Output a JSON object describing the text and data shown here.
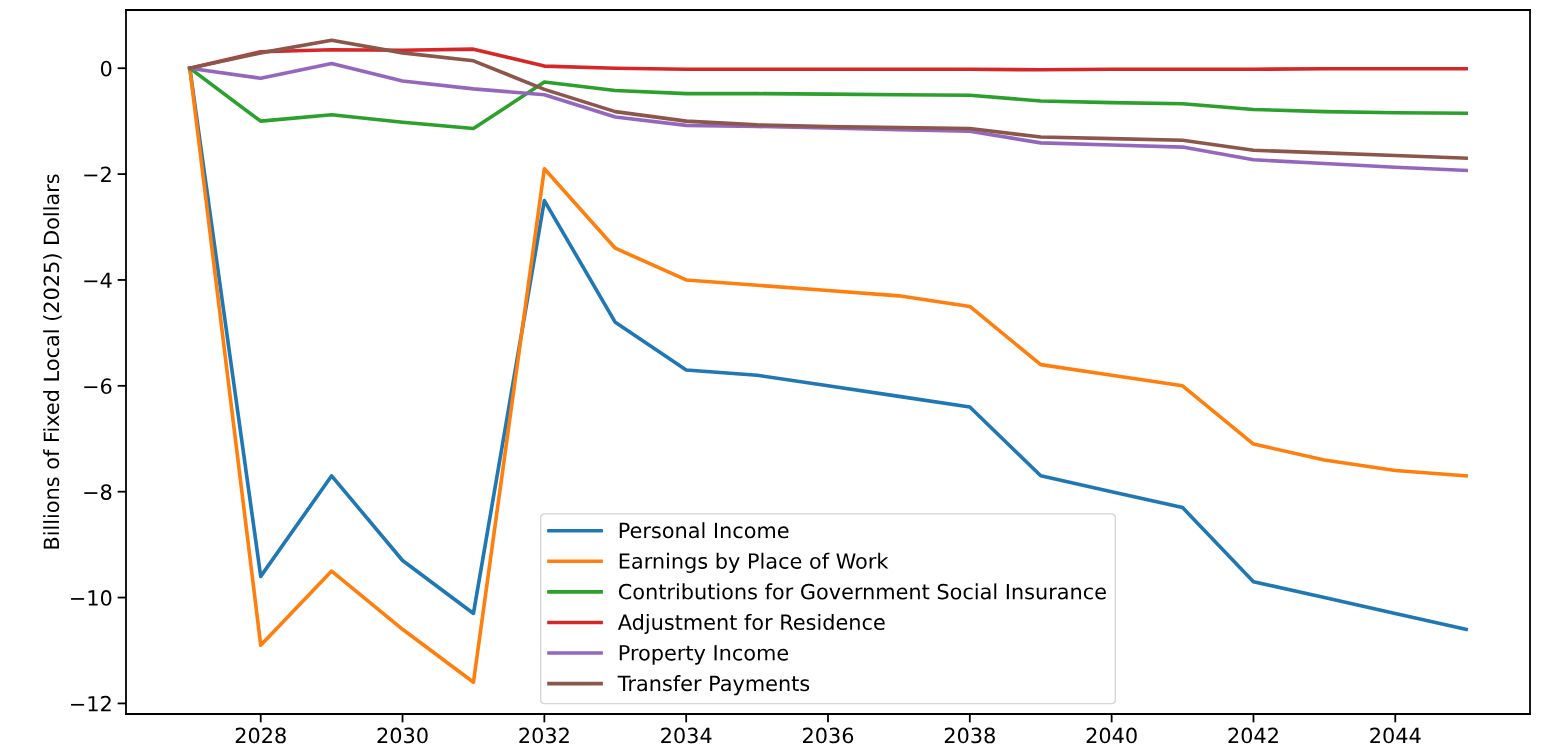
{
  "chart_data": {
    "type": "line",
    "ylabel": "Billions of Fixed Local (2025) Dollars",
    "x": [
      2027,
      2028,
      2029,
      2030,
      2031,
      2032,
      2033,
      2034,
      2035,
      2036,
      2037,
      2038,
      2039,
      2040,
      2041,
      2042,
      2043,
      2044,
      2045
    ],
    "series": [
      {
        "name": "Personal Income",
        "color": "#1f77b4",
        "values": [
          0,
          -9.6,
          -7.7,
          -9.3,
          -10.3,
          -2.5,
          -4.8,
          -5.7,
          -5.8,
          -6.0,
          -6.2,
          -6.4,
          -7.7,
          -8.0,
          -8.3,
          -9.7,
          -10.0,
          -10.3,
          -10.6
        ]
      },
      {
        "name": "Earnings by Place of Work",
        "color": "#ff7f0e",
        "values": [
          0,
          -10.9,
          -9.5,
          -10.6,
          -11.6,
          -1.9,
          -3.4,
          -4.0,
          -4.1,
          -4.2,
          -4.3,
          -4.5,
          -5.6,
          -5.8,
          -6.0,
          -7.1,
          -7.4,
          -7.6,
          -7.7
        ]
      },
      {
        "name": "Contributions for Government Social Insurance",
        "color": "#2ca02c",
        "values": [
          0,
          -1.0,
          -0.88,
          -1.02,
          -1.14,
          -0.26,
          -0.42,
          -0.48,
          -0.48,
          -0.49,
          -0.5,
          -0.51,
          -0.62,
          -0.65,
          -0.67,
          -0.78,
          -0.82,
          -0.84,
          -0.85
        ]
      },
      {
        "name": "Adjustment for Residence",
        "color": "#d62728",
        "values": [
          0,
          0.31,
          0.35,
          0.34,
          0.36,
          0.04,
          0,
          -0.02,
          -0.02,
          -0.02,
          -0.02,
          -0.02,
          -0.03,
          -0.02,
          -0.02,
          -0.02,
          -0.01,
          -0.01,
          -0.01
        ]
      },
      {
        "name": "Property Income",
        "color": "#9467bd",
        "values": [
          0,
          -0.19,
          0.09,
          -0.24,
          -0.39,
          -0.5,
          -0.92,
          -1.08,
          -1.1,
          -1.13,
          -1.16,
          -1.19,
          -1.41,
          -1.45,
          -1.49,
          -1.73,
          -1.8,
          -1.87,
          -1.93
        ]
      },
      {
        "name": "Transfer Payments",
        "color": "#8c564b",
        "values": [
          0,
          0.29,
          0.53,
          0.29,
          0.14,
          -0.4,
          -0.82,
          -1.0,
          -1.07,
          -1.1,
          -1.12,
          -1.14,
          -1.3,
          -1.33,
          -1.36,
          -1.55,
          -1.6,
          -1.65,
          -1.7
        ]
      }
    ],
    "xlim": [
      2026.1,
      2045.9
    ],
    "ylim": [
      -12.2,
      1.1
    ],
    "xticks": [
      2028,
      2030,
      2032,
      2034,
      2036,
      2038,
      2040,
      2042,
      2044
    ],
    "yticks": [
      {
        "value": -12,
        "label": "−12"
      },
      {
        "value": -10,
        "label": "−10"
      },
      {
        "value": -8,
        "label": "−8"
      },
      {
        "value": -6,
        "label": "−6"
      },
      {
        "value": -4,
        "label": "−4"
      },
      {
        "value": -2,
        "label": "−2"
      },
      0
    ],
    "grid": false,
    "legend": "bottom",
    "marker": "none",
    "line_style": "solid"
  }
}
